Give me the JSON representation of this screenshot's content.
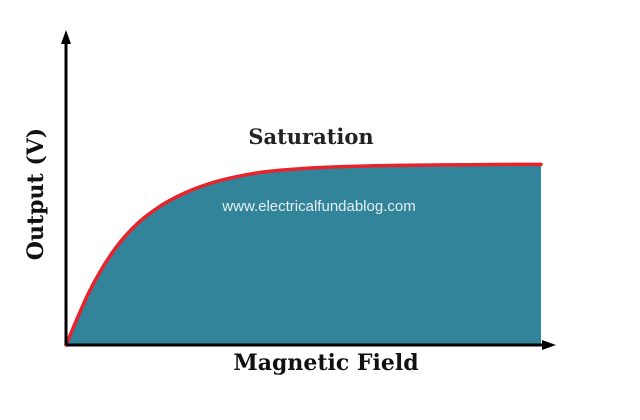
{
  "chart_data": {
    "type": "area",
    "xlabel": "Magnetic Field",
    "ylabel": "Output (V)",
    "annotation": "Saturation",
    "watermark": "www.electricalfundablog.com",
    "x": [
      0,
      0.05,
      0.1,
      0.15,
      0.2,
      0.25,
      0.3,
      0.35,
      0.4,
      0.45,
      0.5,
      0.55,
      0.6,
      0.65,
      0.7,
      0.75,
      0.8,
      0.85,
      0.9,
      0.95,
      1.0
    ],
    "y": [
      0,
      0.3,
      0.52,
      0.67,
      0.77,
      0.84,
      0.89,
      0.925,
      0.95,
      0.965,
      0.975,
      0.982,
      0.987,
      0.99,
      0.992,
      0.994,
      0.995,
      0.996,
      0.997,
      0.998,
      0.998
    ],
    "xlim": [
      0,
      1
    ],
    "ylim": [
      0,
      1
    ],
    "grid": false,
    "colors": {
      "fill": "#32849b",
      "curve": "#e8232b",
      "axis": "#000000"
    }
  }
}
